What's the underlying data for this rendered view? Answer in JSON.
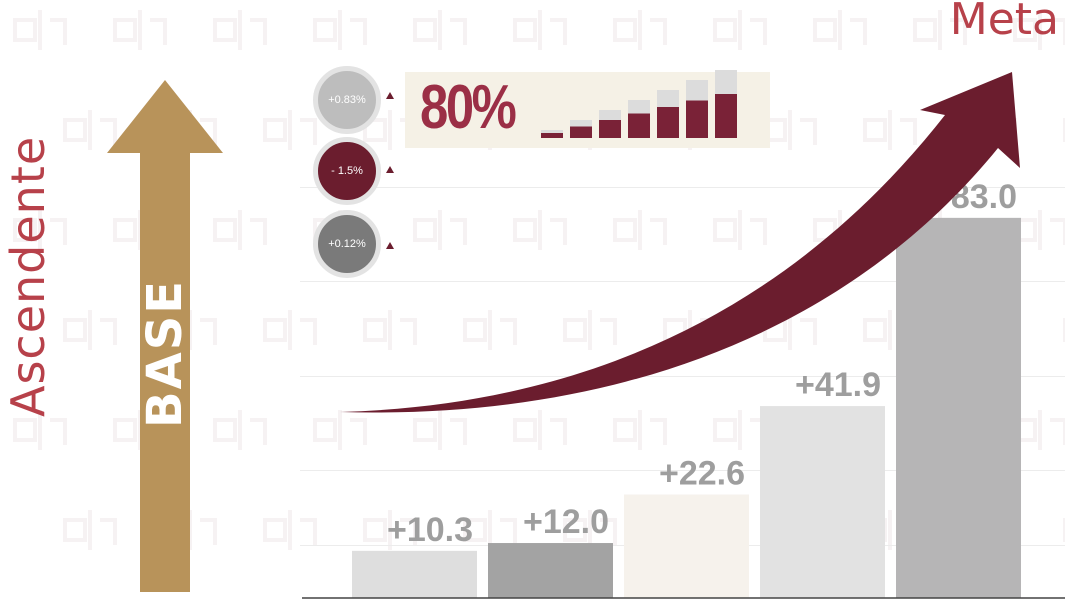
{
  "side_label": "Ascendente",
  "goal_label": "Meta",
  "base_label": "BASE",
  "kpi": {
    "value": "80%",
    "mini_bar_count": 7
  },
  "badges": [
    {
      "text": "+0.83%",
      "color": "#bdbdbd"
    },
    {
      "text": "- 1.5%",
      "color": "#6b1d2e"
    },
    {
      "text": "+0.12%",
      "color": "#7a7a7a"
    }
  ],
  "colors": {
    "accent_text": "#b7414a",
    "maroon": "#6b1d2e",
    "gold": "#b8935a",
    "kpi_text": "#9b2f46",
    "value_label": "#9e9e9e"
  },
  "chart_data": {
    "type": "bar",
    "values": [
      10.3,
      12.0,
      22.6,
      41.9,
      83.0
    ],
    "data_labels": [
      "+10.3",
      "+12.0",
      "+22.6",
      "+41.9",
      "+83.0"
    ],
    "colors": [
      "#dedede",
      "#a3a3a3",
      "#f6f2ec",
      "#e2e2e2",
      "#b6b5b6"
    ],
    "ylim": [
      0,
      100
    ],
    "grid": true,
    "title": "",
    "xlabel": "",
    "ylabel": ""
  }
}
